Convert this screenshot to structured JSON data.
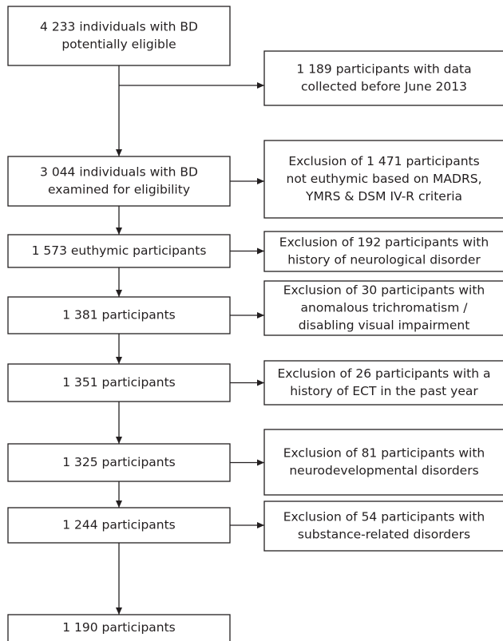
{
  "steps": [
    {
      "lines": [
        "4 233 individuals with BD",
        "potentially eligible"
      ]
    },
    {
      "lines": [
        "3 044 individuals with BD",
        "examined for eligibility"
      ]
    },
    {
      "lines": [
        "1 573 euthymic participants"
      ]
    },
    {
      "lines": [
        "1 381 participants"
      ]
    },
    {
      "lines": [
        "1 351 participants"
      ]
    },
    {
      "lines": [
        "1 325 participants"
      ]
    },
    {
      "lines": [
        "1 244 participants"
      ]
    },
    {
      "lines": [
        "1 190 participants"
      ]
    }
  ],
  "exclusions": [
    {
      "lines": [
        "1 189 participants with data",
        "collected before June 2013"
      ]
    },
    {
      "lines": [
        "Exclusion of 1 471 participants",
        "not euthymic based on MADRS,",
        "YMRS & DSM IV-R criteria"
      ]
    },
    {
      "lines": [
        "Exclusion of 192 participants with",
        "history of neurological disorder"
      ]
    },
    {
      "lines": [
        "Exclusion of 30 participants with",
        "anomalous trichromatism /",
        "disabling visual impairment"
      ]
    },
    {
      "lines": [
        "Exclusion of 26 participants with a",
        "history of ECT in the past year"
      ]
    },
    {
      "lines": [
        "Exclusion of 81 participants with",
        "neurodevelopmental disorders"
      ]
    },
    {
      "lines": [
        "Exclusion of 54 participants with",
        "substance-related disorders"
      ]
    }
  ]
}
